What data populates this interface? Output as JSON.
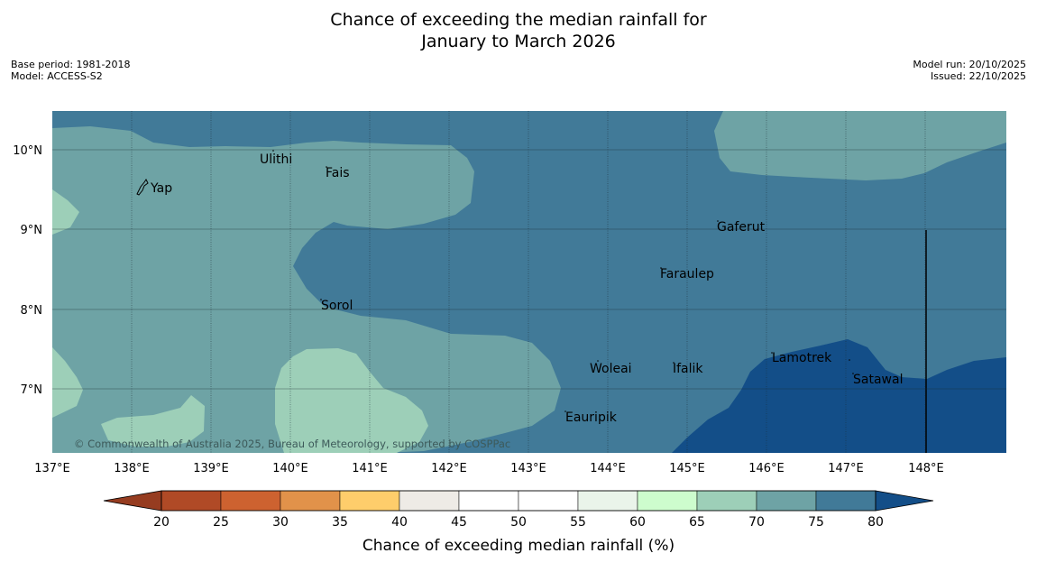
{
  "title": {
    "line1": "Chance of exceeding the median rainfall for",
    "line2": "January to March 2026"
  },
  "meta_left": {
    "base_period": "Base period: 1981-2018",
    "model": "Model: ACCESS-S2"
  },
  "meta_right": {
    "model_run": "Model run: 20/10/2025",
    "issued": "Issued: 22/10/2025"
  },
  "map": {
    "lon_labels": [
      "137°E",
      "138°E",
      "139°E",
      "140°E",
      "141°E",
      "142°E",
      "143°E",
      "144°E",
      "145°E",
      "146°E",
      "147°E",
      "148°E"
    ],
    "lat_labels": [
      "10°N",
      "9°N",
      "8°N",
      "7°N"
    ],
    "places": {
      "yap": "Yap",
      "ulithi": "Ulithi",
      "fais": "Fais",
      "gaferut": "Gaferut",
      "faraulep": "Faraulep",
      "sorol": "Sorol",
      "woleai": "Woleai",
      "ifalik": "Ifalik",
      "lamotrek": "Lamotrek",
      "satawal": "Satawal",
      "eauripik": "Eauripik"
    },
    "credit": "© Commonwealth of Australia 2025, Bureau of Meteorology, supported by COSPPac"
  },
  "colorbar": {
    "title": "Chance of exceeding median rainfall (%)",
    "labels": [
      "20",
      "25",
      "30",
      "35",
      "40",
      "45",
      "50",
      "55",
      "60",
      "65",
      "70",
      "75",
      "80"
    ],
    "colors": [
      "#b04a26",
      "#cd6230",
      "#e1924a",
      "#fecd6b",
      "#eeebe6",
      "#ffffff",
      "#ffffff",
      "#eaf4ea",
      "#cdfccd",
      "#9dcfb8",
      "#6ea3a5",
      "#417a98"
    ],
    "under_color": "#963c20",
    "over_color": "#134e88"
  }
}
